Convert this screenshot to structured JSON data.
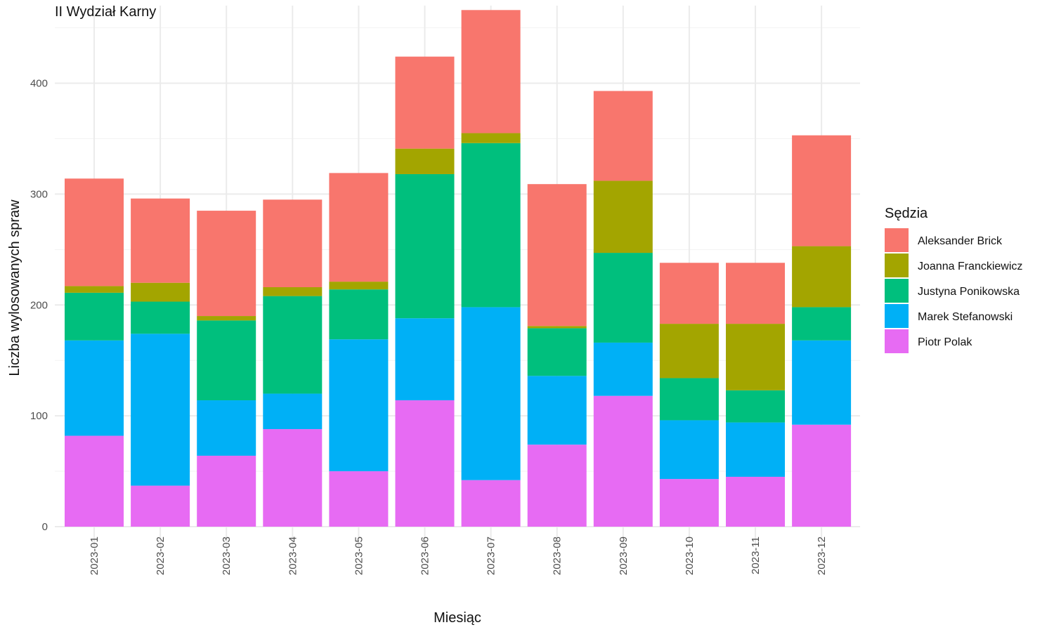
{
  "chart_data": {
    "type": "bar",
    "stacked": true,
    "title": "II Wydział Karny",
    "xlabel": "Miesiąc",
    "ylabel": "Liczba wylosowanych spraw",
    "ylim": [
      0,
      470
    ],
    "yticks": [
      0,
      100,
      200,
      300,
      400
    ],
    "grid": true,
    "legend_title": "Sędzia",
    "legend_position": "right",
    "categories": [
      "2023-01",
      "2023-02",
      "2023-03",
      "2023-04",
      "2023-05",
      "2023-06",
      "2023-07",
      "2023-08",
      "2023-09",
      "2023-10",
      "2023-11",
      "2023-12"
    ],
    "series": [
      {
        "name": "Piotr Polak",
        "color": "#E76BF3",
        "values": [
          82,
          37,
          64,
          88,
          50,
          114,
          42,
          74,
          118,
          43,
          45,
          92
        ]
      },
      {
        "name": "Marek Stefanowski",
        "color": "#00B0F6",
        "values": [
          86,
          137,
          50,
          32,
          119,
          74,
          156,
          62,
          48,
          53,
          49,
          76
        ]
      },
      {
        "name": "Justyna Ponikowska",
        "color": "#00BF7D",
        "values": [
          43,
          29,
          72,
          88,
          45,
          130,
          148,
          43,
          81,
          38,
          29,
          30
        ]
      },
      {
        "name": "Joanna Franckiewicz",
        "color": "#A3A500",
        "values": [
          6,
          17,
          4,
          8,
          7,
          23,
          9,
          2,
          65,
          49,
          60,
          55
        ]
      },
      {
        "name": "Aleksander Brick",
        "color": "#F8766D",
        "values": [
          97,
          76,
          95,
          79,
          98,
          83,
          111,
          128,
          81,
          55,
          55,
          100
        ]
      }
    ],
    "legend_order": [
      "Aleksander Brick",
      "Joanna Franckiewicz",
      "Justyna Ponikowska",
      "Marek Stefanowski",
      "Piotr Polak"
    ]
  }
}
